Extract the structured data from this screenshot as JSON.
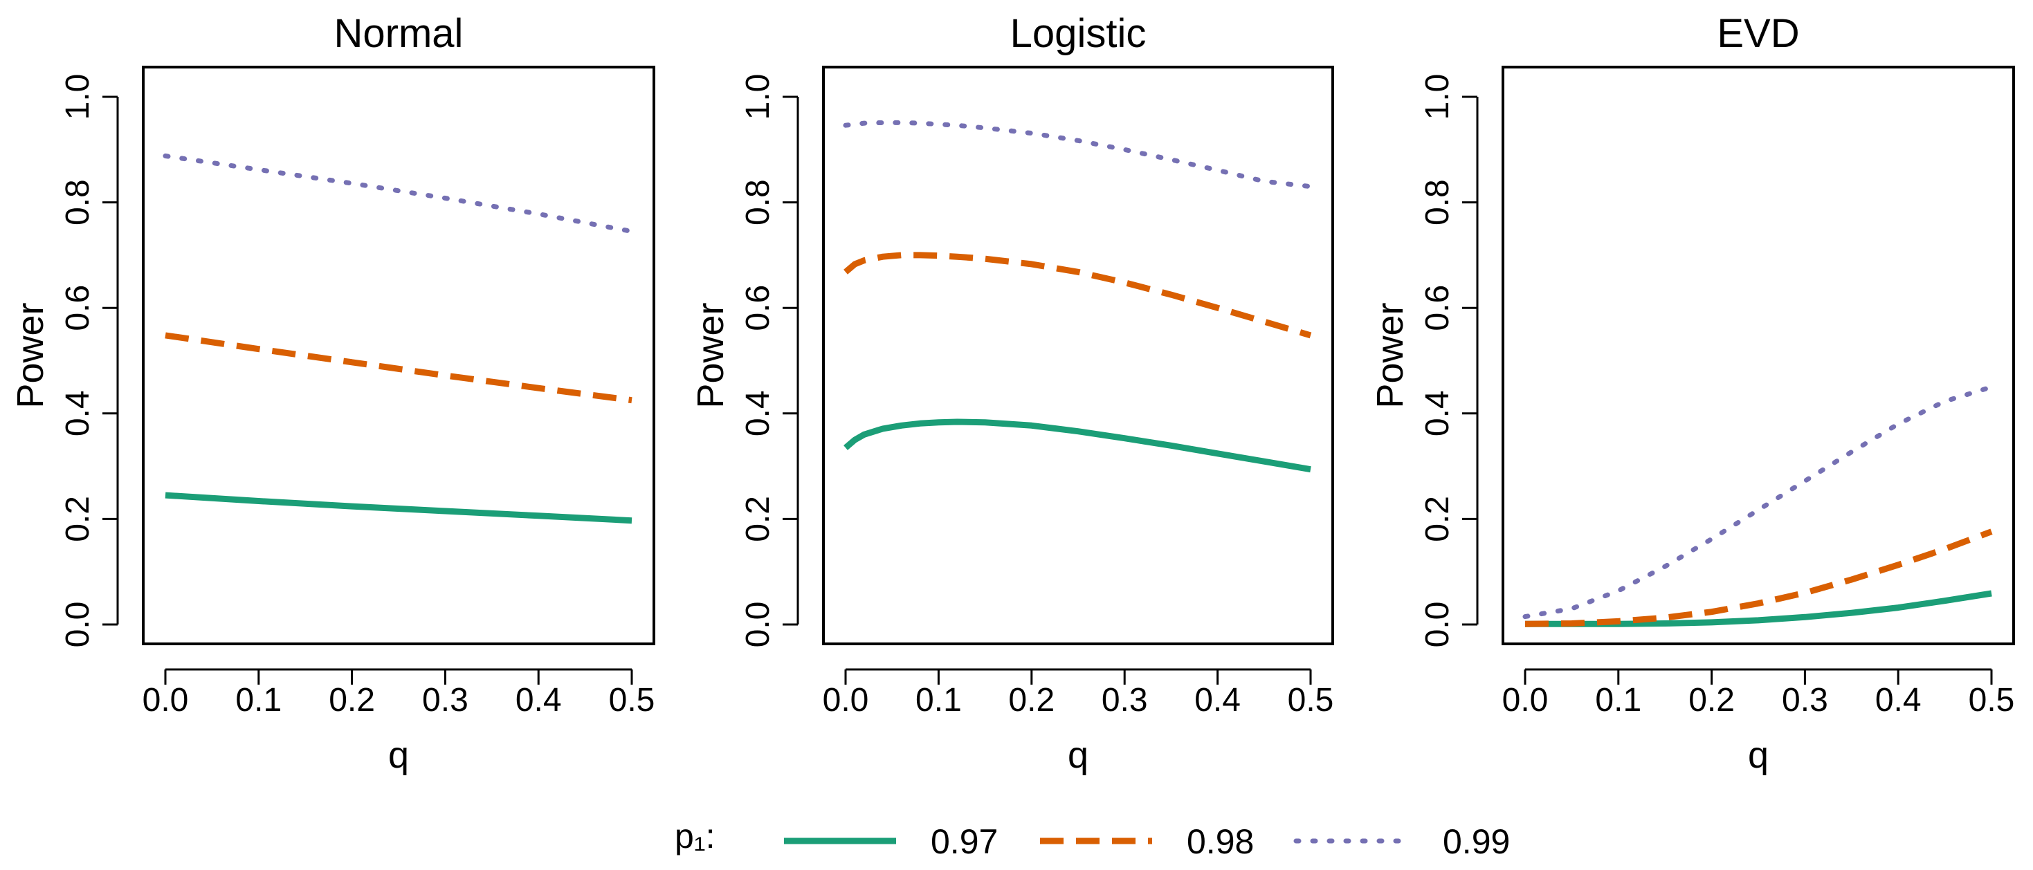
{
  "chart_data": {
    "type": "line",
    "legend": {
      "title": "p₁:",
      "placement": "bottom-center"
    },
    "panels": [
      {
        "title": "Normal",
        "xlabel": "q",
        "ylabel": "Power",
        "xlim": [
          0.0,
          0.5
        ],
        "ylim": [
          0.0,
          1.0
        ],
        "xticks": [
          "0.0",
          "0.1",
          "0.2",
          "0.3",
          "0.4",
          "0.5"
        ],
        "yticks": [
          "0.0",
          "0.2",
          "0.4",
          "0.6",
          "0.8",
          "1.0"
        ],
        "x": [
          0.0,
          0.1,
          0.2,
          0.3,
          0.4,
          0.5
        ],
        "series": [
          {
            "name": "0.97",
            "values": [
              0.245,
              0.234,
              0.224,
              0.215,
              0.206,
              0.197
            ]
          },
          {
            "name": "0.98",
            "values": [
              0.548,
              0.522,
              0.497,
              0.472,
              0.448,
              0.425
            ]
          },
          {
            "name": "0.99",
            "values": [
              0.888,
              0.862,
              0.836,
              0.808,
              0.778,
              0.745
            ]
          }
        ]
      },
      {
        "title": "Logistic",
        "xlabel": "q",
        "ylabel": "Power",
        "xlim": [
          0.0,
          0.5
        ],
        "ylim": [
          0.0,
          1.0
        ],
        "xticks": [
          "0.0",
          "0.1",
          "0.2",
          "0.3",
          "0.4",
          "0.5"
        ],
        "yticks": [
          "0.0",
          "0.2",
          "0.4",
          "0.6",
          "0.8",
          "1.0"
        ],
        "x": [
          0.0,
          0.01,
          0.02,
          0.04,
          0.06,
          0.08,
          0.1,
          0.12,
          0.15,
          0.2,
          0.25,
          0.3,
          0.35,
          0.4,
          0.45,
          0.5
        ],
        "series": [
          {
            "name": "0.97",
            "values": [
              0.335,
              0.35,
              0.36,
              0.371,
              0.377,
              0.381,
              0.383,
              0.384,
              0.383,
              0.377,
              0.366,
              0.353,
              0.339,
              0.324,
              0.309,
              0.294
            ]
          },
          {
            "name": "0.98",
            "values": [
              0.668,
              0.683,
              0.69,
              0.697,
              0.7,
              0.7,
              0.699,
              0.697,
              0.693,
              0.683,
              0.668,
              0.648,
              0.625,
              0.6,
              0.574,
              0.548
            ]
          },
          {
            "name": "0.99",
            "values": [
              0.946,
              0.948,
              0.95,
              0.951,
              0.951,
              0.95,
              0.948,
              0.946,
              0.941,
              0.931,
              0.917,
              0.9,
              0.881,
              0.861,
              0.84,
              0.83
            ]
          }
        ]
      },
      {
        "title": "EVD",
        "xlabel": "q",
        "ylabel": "Power",
        "xlim": [
          0.0,
          0.5
        ],
        "ylim": [
          0.0,
          1.0
        ],
        "xticks": [
          "0.0",
          "0.1",
          "0.2",
          "0.3",
          "0.4",
          "0.5"
        ],
        "yticks": [
          "0.0",
          "0.2",
          "0.4",
          "0.6",
          "0.8",
          "1.0"
        ],
        "x": [
          0.0,
          0.05,
          0.1,
          0.15,
          0.2,
          0.25,
          0.3,
          0.35,
          0.4,
          0.45,
          0.5
        ],
        "series": [
          {
            "name": "0.97",
            "values": [
              0.001,
              0.001,
              0.001,
              0.002,
              0.004,
              0.008,
              0.014,
              0.022,
              0.032,
              0.045,
              0.059
            ]
          },
          {
            "name": "0.98",
            "values": [
              0.001,
              0.002,
              0.006,
              0.013,
              0.024,
              0.04,
              0.06,
              0.085,
              0.113,
              0.143,
              0.176
            ]
          },
          {
            "name": "0.99",
            "values": [
              0.015,
              0.03,
              0.064,
              0.11,
              0.162,
              0.217,
              0.272,
              0.327,
              0.38,
              0.423,
              0.45
            ]
          }
        ]
      }
    ]
  },
  "colors": {
    "series_0.97": "#1b9e77",
    "series_0.98": "#d95f02",
    "series_0.99": "#7570b3",
    "axis": "#000000"
  },
  "series_styles": [
    "solid",
    "dashed",
    "dotted"
  ]
}
